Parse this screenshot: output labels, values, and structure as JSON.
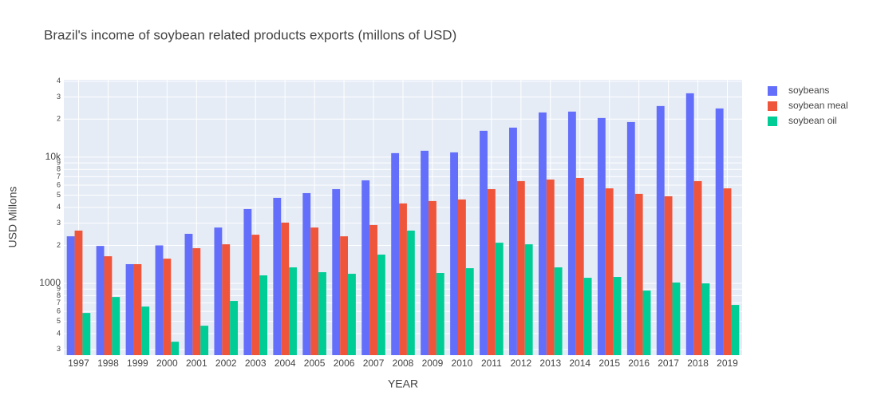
{
  "chart_data": {
    "type": "bar",
    "title": "Brazil's income of soybean related products exports (millons of USD)",
    "x_label": "YEAR",
    "y_label": "USD Millons",
    "log_y": true,
    "grid": true,
    "legend": "right",
    "categories": [
      "1997",
      "1998",
      "1999",
      "2000",
      "2001",
      "2002",
      "2003",
      "2004",
      "2005",
      "2006",
      "2007",
      "2008",
      "2009",
      "2010",
      "2011",
      "2012",
      "2013",
      "2014",
      "2015",
      "2016",
      "2017",
      "2018",
      "2019"
    ],
    "series": [
      {
        "name": "soybeans",
        "color": "#636efa",
        "values": [
          2360,
          1980,
          1420,
          2000,
          2470,
          2770,
          3880,
          4760,
          5190,
          5580,
          6550,
          10760,
          11240,
          10910,
          16180,
          17140,
          22600,
          22960,
          20420,
          18970,
          25410,
          32070,
          24320
        ]
      },
      {
        "name": "soybean meal",
        "color": "#ef553b",
        "values": [
          2620,
          1640,
          1420,
          1570,
          1900,
          2040,
          2430,
          3030,
          2770,
          2360,
          2900,
          4300,
          4490,
          4620,
          5580,
          6460,
          6650,
          6840,
          5660,
          5120,
          4900,
          6460,
          5660
        ]
      },
      {
        "name": "soybean oil",
        "color": "#00cc96",
        "values": [
          583,
          780,
          655,
          345,
          462,
          726,
          1157,
          1339,
          1226,
          1191,
          1690,
          2620,
          1209,
          1319,
          2100,
          2040,
          1339,
          1107,
          1124,
          877,
          1015,
          1000,
          675
        ]
      }
    ],
    "ylim": [
      270,
      41000
    ],
    "yticks": [
      {
        "value": 300,
        "label": "3"
      },
      {
        "value": 400,
        "label": "4"
      },
      {
        "value": 500,
        "label": "5"
      },
      {
        "value": 600,
        "label": "6"
      },
      {
        "value": 700,
        "label": "7"
      },
      {
        "value": 800,
        "label": "8"
      },
      {
        "value": 900,
        "label": "9"
      },
      1000,
      {
        "value": 2000,
        "label": "2"
      },
      {
        "value": 3000,
        "label": "3"
      },
      {
        "value": 4000,
        "label": "4"
      },
      {
        "value": 5000,
        "label": "5"
      },
      {
        "value": 6000,
        "label": "6"
      },
      {
        "value": 7000,
        "label": "7"
      },
      {
        "value": 8000,
        "label": "8"
      },
      {
        "value": 9000,
        "label": "9"
      },
      {
        "value": 10000,
        "label": "10k"
      },
      {
        "value": 20000,
        "label": "2"
      },
      {
        "value": 30000,
        "label": "3"
      },
      {
        "value": 40000,
        "label": "4"
      }
    ]
  }
}
